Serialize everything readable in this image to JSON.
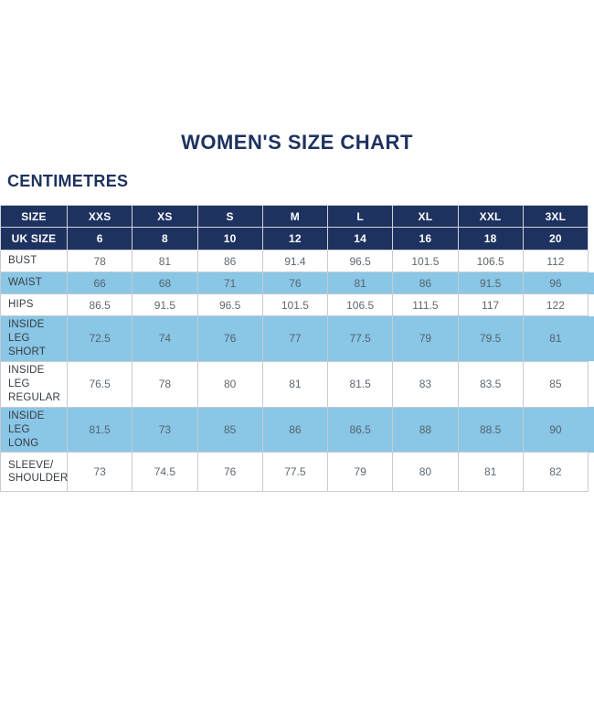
{
  "title": "WOMEN'S SIZE CHART",
  "unit_label": "CENTIMETRES",
  "colors": {
    "navy_header": "#1e3260",
    "highlight_blue": "#8ac6e5",
    "border_gray": "#c6ccd1",
    "value_text": "#5e6973",
    "label_text": "#343c44"
  },
  "chart_data": {
    "type": "table",
    "title": "WOMEN'S SIZE CHART",
    "units": "CENTIMETRES",
    "header": [
      "SIZE",
      "XXS",
      "XS",
      "S",
      "M",
      "L",
      "XL",
      "XXL",
      "3XL"
    ],
    "uk_size": [
      "UK SIZE",
      "6",
      "8",
      "10",
      "12",
      "14",
      "16",
      "18",
      "20"
    ],
    "rows": [
      {
        "label": "BUST",
        "highlight": false,
        "values": [
          "78",
          "81",
          "86",
          "91.4",
          "96.5",
          "101.5",
          "106.5",
          "112"
        ]
      },
      {
        "label": "WAIST",
        "highlight": true,
        "values": [
          "66",
          "68",
          "71",
          "76",
          "81",
          "86",
          "91.5",
          "96"
        ]
      },
      {
        "label": "HIPS",
        "highlight": false,
        "values": [
          "86.5",
          "91.5",
          "96.5",
          "101.5",
          "106.5",
          "111.5",
          "117",
          "122"
        ]
      },
      {
        "label": "INSIDE LEG SHORT",
        "highlight": true,
        "values": [
          "72.5",
          "74",
          "76",
          "77",
          "77.5",
          "79",
          "79.5",
          "81"
        ]
      },
      {
        "label": "INSIDE LEG REGULAR",
        "highlight": false,
        "values": [
          "76.5",
          "78",
          "80",
          "81",
          "81.5",
          "83",
          "83.5",
          "85"
        ]
      },
      {
        "label": "INSIDE LEG LONG",
        "highlight": true,
        "values": [
          "81.5",
          "73",
          "85",
          "86",
          "86.5",
          "88",
          "88.5",
          "90"
        ]
      },
      {
        "label": "SLEEVE/ SHOULDER",
        "highlight": false,
        "values": [
          "73",
          "74.5",
          "76",
          "77.5",
          "79",
          "80",
          "81",
          "82"
        ]
      }
    ]
  }
}
